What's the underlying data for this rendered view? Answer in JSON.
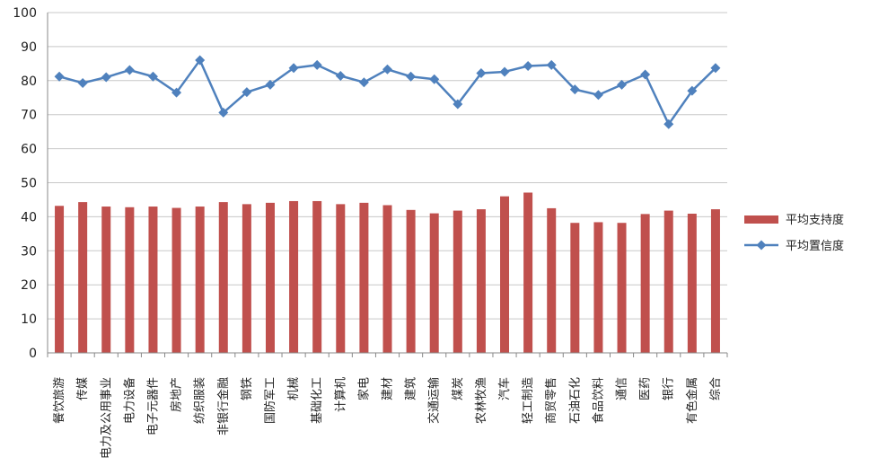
{
  "chart_data": {
    "type": "bar",
    "title": "",
    "xlabel": "",
    "ylabel": "",
    "ylim": [
      0,
      100
    ],
    "yticks": [
      0,
      10,
      20,
      30,
      40,
      50,
      60,
      70,
      80,
      90,
      100
    ],
    "grid": true,
    "legend_position": "right",
    "categories": [
      "餐饮旅游",
      "传媒",
      "电力及公用事业",
      "电力设备",
      "电子元器件",
      "房地产",
      "纺织服装",
      "非银行金融",
      "钢铁",
      "国防军工",
      "机械",
      "基础化工",
      "计算机",
      "家电",
      "建材",
      "建筑",
      "交通运输",
      "煤炭",
      "农林牧渔",
      "汽车",
      "轻工制造",
      "商贸零售",
      "石油石化",
      "食品饮料",
      "通信",
      "医药",
      "银行",
      "有色金属",
      "综合"
    ],
    "series": [
      {
        "name": "平均支持度",
        "type": "bar",
        "color": "#c0504d",
        "values": [
          43.2,
          44.3,
          43.0,
          42.8,
          43.0,
          42.6,
          43.0,
          44.3,
          43.7,
          44.1,
          44.6,
          44.6,
          43.7,
          44.1,
          43.4,
          42.0,
          41.0,
          41.8,
          42.2,
          46.0,
          47.1,
          42.5,
          38.2,
          38.4,
          38.2,
          40.8,
          41.8,
          40.9,
          42.2
        ]
      },
      {
        "name": "平均置信度",
        "type": "line",
        "color": "#4f81bd",
        "marker": "diamond",
        "values": [
          81.2,
          79.3,
          81.0,
          83.1,
          81.2,
          76.5,
          86.0,
          70.6,
          76.6,
          78.8,
          83.7,
          84.6,
          81.4,
          79.5,
          83.3,
          81.2,
          80.4,
          73.1,
          82.2,
          82.6,
          84.3,
          84.6,
          77.4,
          75.8,
          78.8,
          81.8,
          67.2,
          77.0,
          83.7
        ]
      }
    ]
  }
}
